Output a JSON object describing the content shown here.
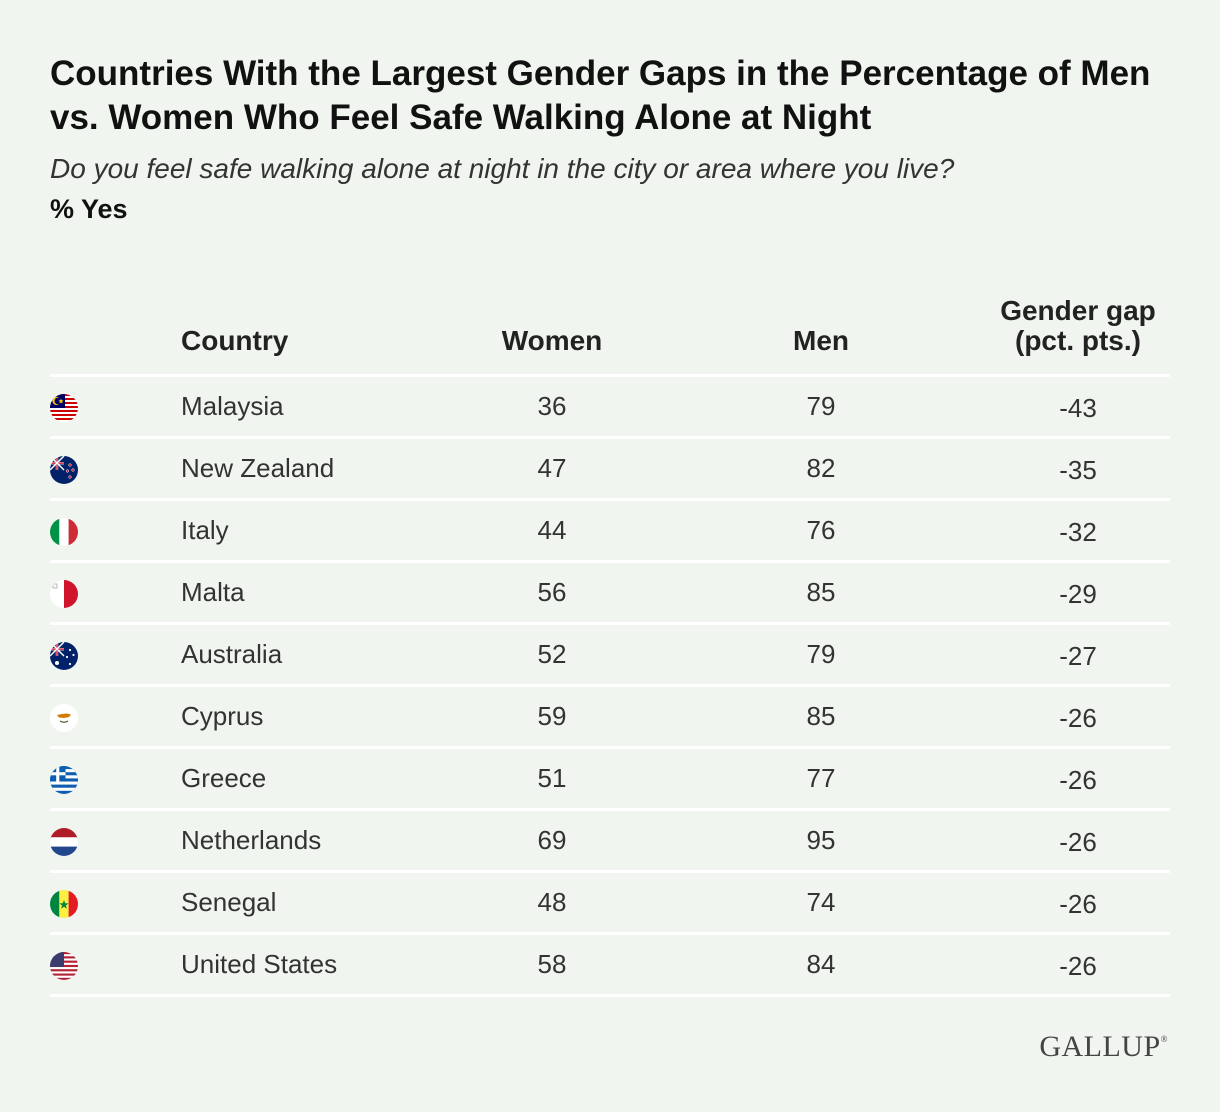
{
  "title": "Countries With the Largest Gender Gaps in the Percentage of Men vs. Women Who Feel Safe Walking Alone at Night",
  "subtitle": "Do you feel safe walking alone at night in the city or area where you live?",
  "unit_label": "% Yes",
  "source_logo": "GALLUP",
  "logo_mark": "®",
  "chart_data": {
    "type": "table",
    "title": "Countries With the Largest Gender Gaps in the Percentage of Men vs. Women Who Feel Safe Walking Alone at Night",
    "columns": {
      "country": "Country",
      "women": "Women",
      "men": "Men",
      "gap_line1": "Gender gap",
      "gap_line2": "(pct. pts.)"
    },
    "rows": [
      {
        "country": "Malaysia",
        "flag": "malaysia-flag-icon",
        "women": 36,
        "men": 79,
        "gap": "-43"
      },
      {
        "country": "New Zealand",
        "flag": "new-zealand-flag-icon",
        "women": 47,
        "men": 82,
        "gap": "-35"
      },
      {
        "country": "Italy",
        "flag": "italy-flag-icon",
        "women": 44,
        "men": 76,
        "gap": "-32"
      },
      {
        "country": "Malta",
        "flag": "malta-flag-icon",
        "women": 56,
        "men": 85,
        "gap": "-29"
      },
      {
        "country": "Australia",
        "flag": "australia-flag-icon",
        "women": 52,
        "men": 79,
        "gap": "-27"
      },
      {
        "country": "Cyprus",
        "flag": "cyprus-flag-icon",
        "women": 59,
        "men": 85,
        "gap": "-26"
      },
      {
        "country": "Greece",
        "flag": "greece-flag-icon",
        "women": 51,
        "men": 77,
        "gap": "-26"
      },
      {
        "country": "Netherlands",
        "flag": "netherlands-flag-icon",
        "women": 69,
        "men": 95,
        "gap": "-26"
      },
      {
        "country": "Senegal",
        "flag": "senegal-flag-icon",
        "women": 48,
        "men": 74,
        "gap": "-26"
      },
      {
        "country": "United States",
        "flag": "united-states-flag-icon",
        "women": 58,
        "men": 84,
        "gap": "-26"
      }
    ]
  },
  "colors": {
    "background": "#f0f5ef",
    "rule": "#ffffff"
  }
}
